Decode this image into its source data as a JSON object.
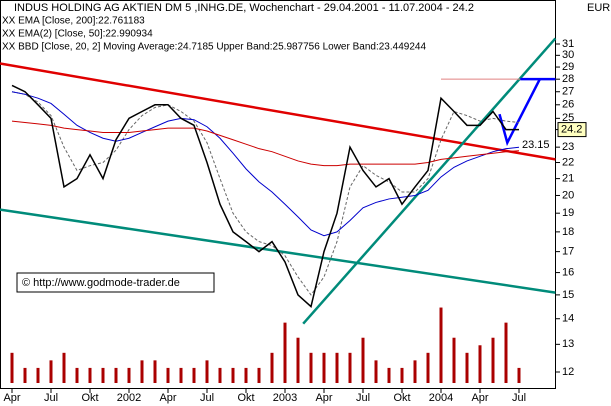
{
  "chart_data": {
    "type": "line",
    "title": "INDUS HOLDING AG AKTIEN DM 5 ,INHG.DE, Wochenchart - 29.04.2001 - 11.07.2004 - 24.2",
    "currency": "EUR",
    "legend": [
      {
        "text": "XX EMA [Close, 200]:22.761183",
        "color": "#cc0000"
      },
      {
        "text": "XX EMA(2) [Close, 50]:22.990934",
        "color": "#0000cc"
      },
      {
        "text": "XX BBD [Close, 20, 2] Moving Average:24.7185 Upper Band:25.987756 Lower Band:23.449244",
        "color": "#999999"
      }
    ],
    "copyright": "© http://www.godmode-trader.de",
    "categories": [
      "Apr",
      null,
      null,
      "Jul",
      null,
      null,
      "Okt",
      null,
      null,
      "2002",
      null,
      null,
      "Apr",
      null,
      null,
      "Jul",
      null,
      null,
      "Okt",
      null,
      null,
      "2003",
      null,
      null,
      "Apr",
      null,
      null,
      "Jul",
      null,
      null,
      "Okt",
      null,
      null,
      "2004",
      null,
      null,
      "Apr",
      null,
      null,
      "Jul"
    ],
    "series": [
      {
        "name": "Close",
        "color": "#000000",
        "values": [
          27.5,
          27,
          26,
          25,
          20.5,
          21,
          22.5,
          21,
          23.5,
          25,
          25.5,
          26,
          26,
          25,
          24.5,
          22,
          19.5,
          18,
          17.5,
          17,
          17.5,
          16.5,
          15,
          14.5,
          17,
          19,
          23,
          21.5,
          20.5,
          21,
          19.5,
          20.5,
          21.5,
          26.5,
          25.5,
          24.5,
          24.5,
          25.5,
          24.2,
          24.2
        ]
      },
      {
        "name": "EMA200",
        "color": "#cc0000",
        "values": [
          24.8,
          24.7,
          24.6,
          24.5,
          24.3,
          24.2,
          24.1,
          24,
          24,
          24,
          24.1,
          24.2,
          24.3,
          24.3,
          24.3,
          24.1,
          23.8,
          23.5,
          23.2,
          22.9,
          22.7,
          22.4,
          22.1,
          21.9,
          21.8,
          21.8,
          21.9,
          21.9,
          21.9,
          21.9,
          21.9,
          21.9,
          22,
          22.2,
          22.3,
          22.4,
          22.5,
          22.6,
          22.7,
          22.76
        ]
      },
      {
        "name": "EMA50",
        "color": "#0000cc",
        "values": [
          27,
          26.8,
          26.5,
          26.1,
          25.3,
          24.5,
          24,
          23.6,
          23.4,
          23.6,
          24,
          24.4,
          24.8,
          25,
          24.9,
          24.4,
          23.6,
          22.6,
          21.6,
          20.8,
          20.2,
          19.5,
          18.8,
          18.1,
          17.8,
          18,
          18.6,
          19.3,
          19.6,
          19.8,
          19.9,
          20,
          20.3,
          21.1,
          21.7,
          22.1,
          22.4,
          22.7,
          22.9,
          22.99
        ]
      },
      {
        "name": "MA20",
        "color": "#666666",
        "values": [
          27,
          26.8,
          26.2,
          25.2,
          23,
          21.5,
          21.8,
          22,
          22.8,
          24.2,
          25.2,
          25.8,
          26,
          25.5,
          24.8,
          23.3,
          21,
          19,
          18,
          17.5,
          17.3,
          16.8,
          15.8,
          15,
          15.8,
          17.5,
          20.5,
          21.8,
          21.2,
          20.8,
          20.2,
          20.2,
          21,
          23.5,
          25.5,
          25.2,
          24.8,
          25,
          24.8,
          24.7
        ]
      }
    ],
    "volume": {
      "color": "#aa0000",
      "values": [
        2,
        1,
        1,
        1.5,
        2,
        1,
        1,
        1,
        1,
        1,
        1.5,
        1.5,
        1,
        1,
        1,
        1.5,
        1,
        1,
        1,
        1,
        2,
        4,
        3,
        2,
        2,
        2,
        2,
        3,
        1.5,
        1,
        1,
        1.5,
        2,
        5,
        3,
        2,
        2.5,
        3,
        4,
        1
      ],
      "vlim": [
        0,
        5.5
      ]
    },
    "trendlines": [
      {
        "color": "#e00000",
        "points": [
          [
            -0.92,
            29.3
          ],
          [
            41.8,
            22.2
          ]
        ]
      },
      {
        "color": "#008b7a",
        "points": [
          [
            -0.92,
            19.2
          ],
          [
            41.8,
            15.1
          ]
        ]
      },
      {
        "color": "#008b7a",
        "points": [
          [
            22.4,
            13.8
          ],
          [
            41.8,
            31.5
          ]
        ]
      },
      {
        "color": "#e08080",
        "points": [
          [
            33,
            28
          ],
          [
            41.8,
            28
          ]
        ]
      },
      {
        "color": "#0000ff",
        "points": [
          [
            37.5,
            25.3
          ],
          [
            38.1,
            23.3
          ],
          [
            40.6,
            28
          ]
        ]
      },
      {
        "color": "#0000ff",
        "points": [
          [
            39.1,
            28
          ],
          [
            41.8,
            28
          ]
        ]
      }
    ],
    "annotation": 23.15,
    "log_scale": true,
    "ylim": [
      12,
      31
    ],
    "yticks": [
      12,
      13,
      14,
      15,
      16,
      17,
      18,
      19,
      20,
      21,
      22,
      23,
      24.2,
      25,
      26,
      27,
      28,
      29,
      30,
      31
    ]
  }
}
